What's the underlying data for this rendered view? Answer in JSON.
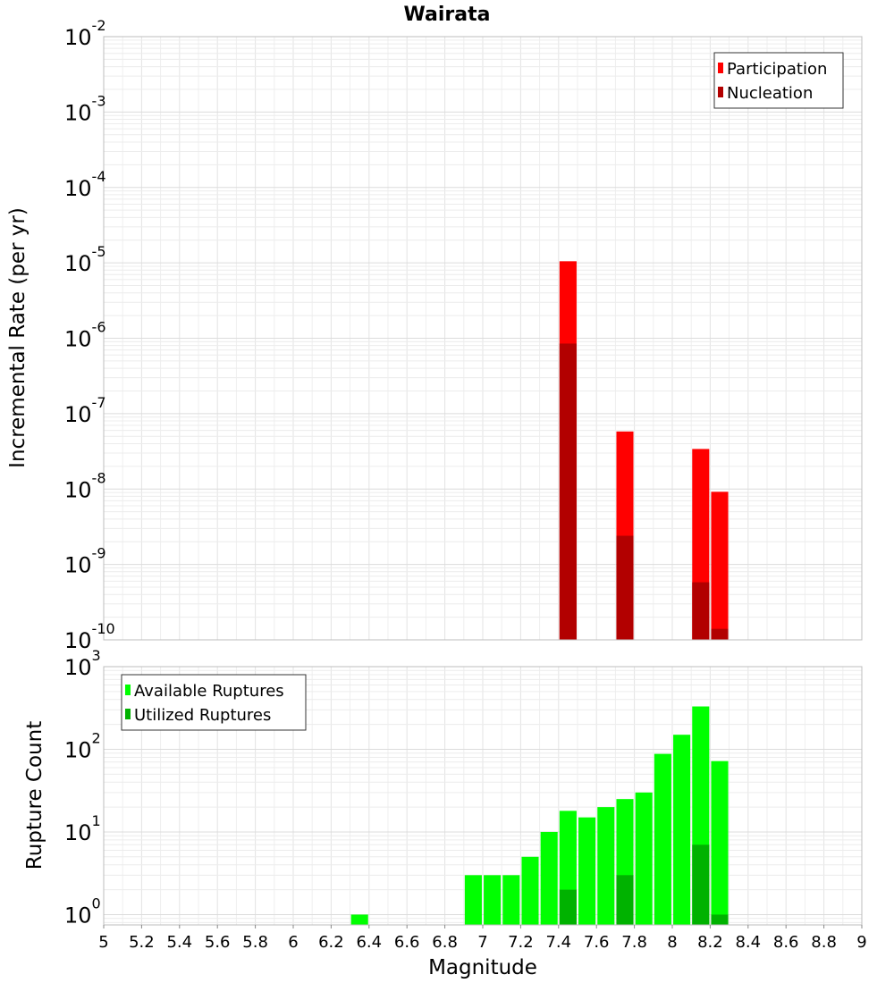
{
  "chart_data": [
    {
      "type": "bar",
      "title": "Wairata",
      "xlabel": "Magnitude",
      "ylabel": "Incremental Rate (per yr)",
      "yscale": "log",
      "xlim": [
        5,
        9
      ],
      "ylim": [
        1e-10,
        0.01
      ],
      "x_ticks": [
        "5",
        "5.2",
        "5.4",
        "5.6",
        "5.8",
        "6",
        "6.2",
        "6.4",
        "6.6",
        "6.8",
        "7",
        "7.2",
        "7.4",
        "7.6",
        "7.8",
        "8",
        "8.2",
        "8.4",
        "8.6",
        "8.8",
        "9"
      ],
      "y_ticks": [
        {
          "base": "10",
          "exp": "-10"
        },
        {
          "base": "10",
          "exp": "-9"
        },
        {
          "base": "10",
          "exp": "-8"
        },
        {
          "base": "10",
          "exp": "-7"
        },
        {
          "base": "10",
          "exp": "-6"
        },
        {
          "base": "10",
          "exp": "-5"
        },
        {
          "base": "10",
          "exp": "-4"
        },
        {
          "base": "10",
          "exp": "-3"
        },
        {
          "base": "10",
          "exp": "-2"
        }
      ],
      "grid": true,
      "legend_position": "top-right",
      "series": [
        {
          "name": "Participation",
          "color": "#ff0000",
          "points": [
            [
              7.45,
              1.05e-05
            ],
            [
              7.75,
              5.8e-08
            ],
            [
              8.15,
              3.4e-08
            ],
            [
              8.25,
              9.2e-09
            ]
          ]
        },
        {
          "name": "Nucleation",
          "color": "#b20000",
          "points": [
            [
              7.45,
              8.5e-07
            ],
            [
              7.75,
              2.4e-09
            ],
            [
              8.15,
              5.8e-10
            ],
            [
              8.25,
              1.4e-10
            ]
          ]
        }
      ]
    },
    {
      "type": "bar",
      "title": "",
      "xlabel": "Magnitude",
      "ylabel": "Rupture Count",
      "yscale": "log",
      "xlim": [
        5,
        9
      ],
      "ylim": [
        0.75,
        1000
      ],
      "y_ticks": [
        {
          "base": "10",
          "exp": "0"
        },
        {
          "base": "10",
          "exp": "1"
        },
        {
          "base": "10",
          "exp": "2"
        },
        {
          "base": "10",
          "exp": "3"
        }
      ],
      "grid": true,
      "legend_position": "top-left",
      "series": [
        {
          "name": "Available Ruptures",
          "color": "#00ff00",
          "points": [
            [
              6.35,
              1
            ],
            [
              6.95,
              3
            ],
            [
              7.05,
              3
            ],
            [
              7.15,
              3
            ],
            [
              7.25,
              5
            ],
            [
              7.35,
              10
            ],
            [
              7.45,
              18
            ],
            [
              7.55,
              15
            ],
            [
              7.65,
              20
            ],
            [
              7.75,
              25
            ],
            [
              7.85,
              30
            ],
            [
              7.95,
              88
            ],
            [
              8.05,
              150
            ],
            [
              8.15,
              330
            ],
            [
              8.25,
              72
            ]
          ]
        },
        {
          "name": "Utilized Ruptures",
          "color": "#00b200",
          "points": [
            [
              7.45,
              2
            ],
            [
              7.75,
              3
            ],
            [
              8.15,
              7
            ],
            [
              8.25,
              1
            ]
          ]
        }
      ]
    }
  ]
}
